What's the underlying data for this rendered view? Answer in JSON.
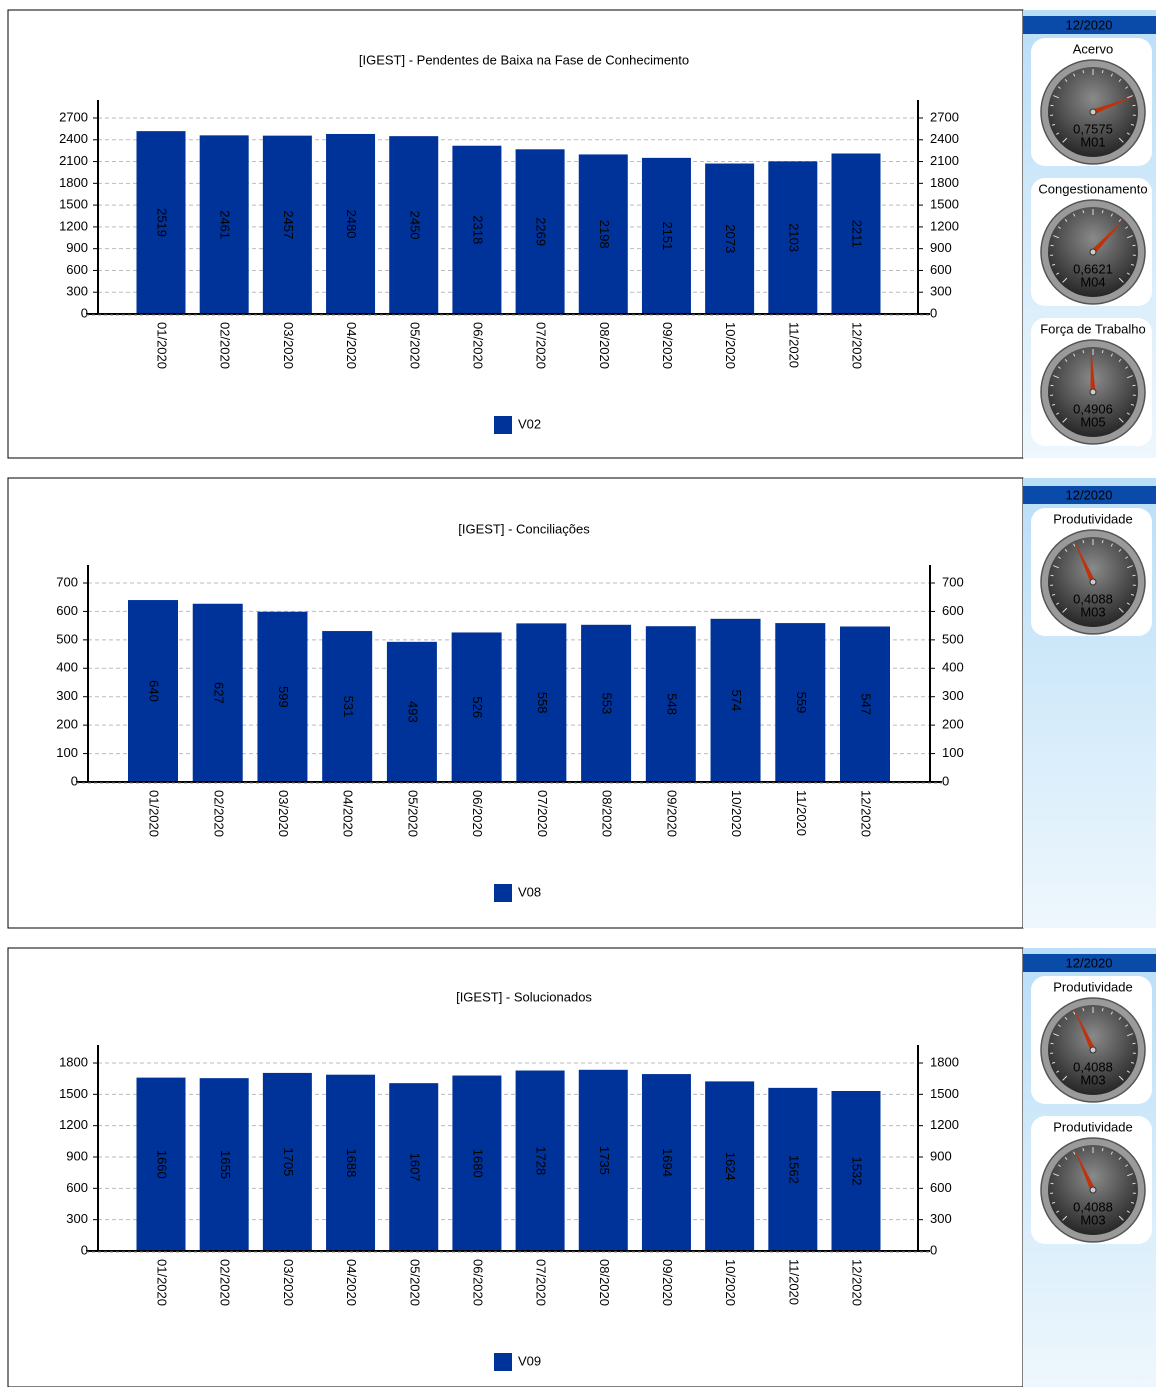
{
  "chart_data": [
    {
      "type": "bar",
      "title": "[IGEST]  - Pendentes de Baixa na Fase de Conhecimento",
      "categories": [
        "01/2020",
        "02/2020",
        "03/2020",
        "04/2020",
        "05/2020",
        "06/2020",
        "07/2020",
        "08/2020",
        "09/2020",
        "10/2020",
        "11/2020",
        "12/2020"
      ],
      "series": [
        {
          "name": "V02",
          "color": "#003399",
          "values": [
            2519,
            2461,
            2457,
            2480,
            2450,
            2318,
            2269,
            2198,
            2151,
            2073,
            2103,
            2211
          ]
        }
      ],
      "ylim": [
        0,
        2700
      ],
      "yticks": [
        0,
        300,
        600,
        900,
        1200,
        1500,
        1800,
        2100,
        2400,
        2700
      ],
      "grid": true
    },
    {
      "type": "bar",
      "title": "[IGEST]  - Conciliações",
      "categories": [
        "01/2020",
        "02/2020",
        "03/2020",
        "04/2020",
        "05/2020",
        "06/2020",
        "07/2020",
        "08/2020",
        "09/2020",
        "10/2020",
        "11/2020",
        "12/2020"
      ],
      "series": [
        {
          "name": "V08",
          "color": "#003399",
          "values": [
            640,
            627,
            599,
            531,
            493,
            526,
            558,
            553,
            548,
            574,
            559,
            547
          ]
        }
      ],
      "ylim": [
        0,
        700
      ],
      "yticks": [
        0,
        100,
        200,
        300,
        400,
        500,
        600,
        700
      ],
      "grid": true
    },
    {
      "type": "bar",
      "title": "[IGEST]  - Solucionados",
      "categories": [
        "01/2020",
        "02/2020",
        "03/2020",
        "04/2020",
        "05/2020",
        "06/2020",
        "07/2020",
        "08/2020",
        "09/2020",
        "10/2020",
        "11/2020",
        "12/2020"
      ],
      "series": [
        {
          "name": "V09",
          "color": "#003399",
          "values": [
            1660,
            1655,
            1705,
            1688,
            1607,
            1680,
            1728,
            1735,
            1694,
            1624,
            1562,
            1532
          ]
        }
      ],
      "ylim": [
        0,
        1800
      ],
      "yticks": [
        0,
        300,
        600,
        900,
        1200,
        1500,
        1800
      ],
      "grid": true
    }
  ],
  "gauges": [
    {
      "date": "12/2020",
      "items": [
        {
          "title": "Acervo",
          "value": 0.7575,
          "value_label": "0,7575",
          "code": "M01",
          "range": [
            0,
            1
          ]
        },
        {
          "title": "Congestionamento",
          "value": 0.6621,
          "value_label": "0,6621",
          "code": "M04",
          "range": [
            0,
            1
          ]
        },
        {
          "title": "Força de Trabalho",
          "value": 0.4906,
          "value_label": "0,4906",
          "code": "M05",
          "range": [
            0,
            1
          ]
        }
      ]
    },
    {
      "date": "12/2020",
      "items": [
        {
          "title": "Produtividade",
          "value": 0.4088,
          "value_label": "0,4088",
          "code": "M03",
          "range": [
            0,
            1
          ]
        }
      ]
    },
    {
      "date": "12/2020",
      "items": [
        {
          "title": "Produtividade",
          "value": 0.4088,
          "value_label": "0,4088",
          "code": "M03",
          "range": [
            0,
            1
          ]
        },
        {
          "title": "Produtividade",
          "value": 0.4088,
          "value_label": "0,4088",
          "code": "M03",
          "range": [
            0,
            1
          ]
        }
      ]
    }
  ]
}
